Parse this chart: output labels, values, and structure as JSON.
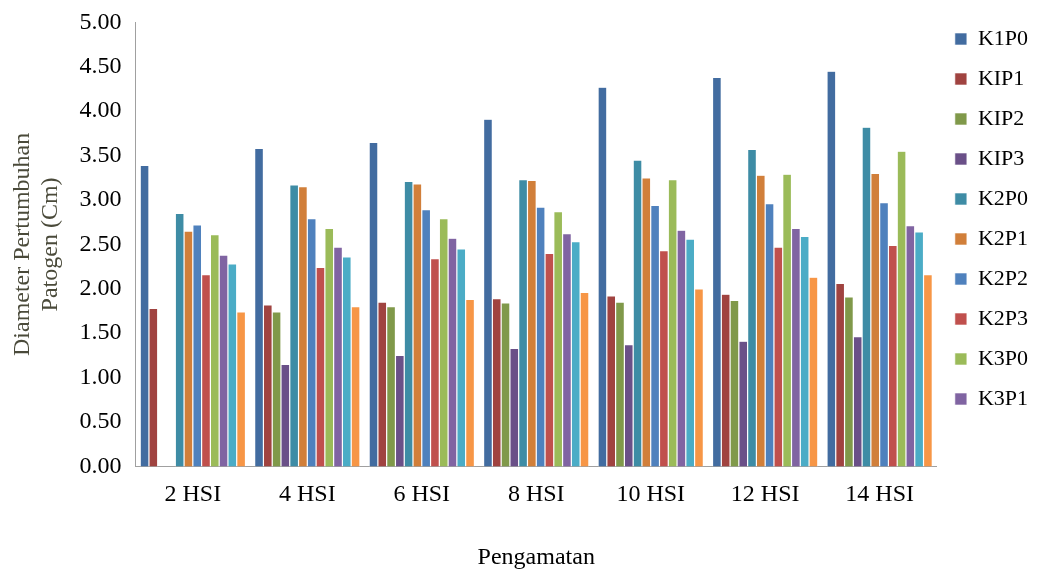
{
  "chart_data": {
    "type": "bar",
    "xlabel": "Pengamatan",
    "ylabel": "Diameter Pertumbuhan\nPatogen (Cm)",
    "categories": [
      "2 HSI",
      "4 HSI",
      "6 HSI",
      "8 HSI",
      "10 HSI",
      "12 HSI",
      "14 HSI"
    ],
    "ylim": [
      0,
      5
    ],
    "yticks": [
      {
        "value": 0,
        "label": "0.00"
      },
      {
        "value": 0.5,
        "label": "0.50"
      },
      {
        "value": 1,
        "label": "1.00"
      },
      {
        "value": 1.5,
        "label": "1.50"
      },
      {
        "value": 2,
        "label": "2.00"
      },
      {
        "value": 2.5,
        "label": "2.50"
      },
      {
        "value": 3,
        "label": "3.00"
      },
      {
        "value": 3.5,
        "label": "3.50"
      },
      {
        "value": 4,
        "label": "4.00"
      },
      {
        "value": 4.5,
        "label": "4.50"
      },
      {
        "value": 5,
        "label": "5.00"
      }
    ],
    "grid": false,
    "legend": "right",
    "series": [
      {
        "name": "K1P0",
        "color": "#426ca0",
        "values": [
          3.39,
          3.58,
          3.65,
          3.91,
          4.27,
          4.38,
          4.45
        ]
      },
      {
        "name": "KIP1",
        "color": "#a04340",
        "values": [
          1.78,
          1.82,
          1.85,
          1.89,
          1.92,
          1.94,
          2.06
        ]
      },
      {
        "name": "KIP2",
        "color": "#80994a",
        "values": [
          null,
          1.74,
          1.8,
          1.84,
          1.85,
          1.87,
          1.91
        ]
      },
      {
        "name": "KIP3",
        "color": "#6a5088",
        "values": [
          null,
          1.15,
          1.25,
          1.33,
          1.37,
          1.41,
          1.46
        ]
      },
      {
        "name": "K2P0",
        "color": "#3e8ca5",
        "values": [
          2.85,
          3.17,
          3.21,
          3.23,
          3.45,
          3.57,
          3.82
        ]
      },
      {
        "name": "K2P1",
        "color": "#d17f3a",
        "values": [
          2.65,
          3.15,
          3.18,
          3.22,
          3.25,
          3.28,
          3.3
        ]
      },
      {
        "name": "K2P2",
        "color": "#4f81bd",
        "values": [
          2.72,
          2.79,
          2.89,
          2.92,
          2.94,
          2.96,
          2.97
        ]
      },
      {
        "name": "K2P3",
        "color": "#c0504d",
        "values": [
          2.16,
          2.24,
          2.34,
          2.4,
          2.43,
          2.47,
          2.49
        ]
      },
      {
        "name": "K3P0",
        "color": "#9bbb59",
        "values": [
          2.61,
          2.68,
          2.79,
          2.87,
          3.23,
          3.29,
          3.55
        ]
      },
      {
        "name": "K3P1",
        "color": "#8064a2",
        "values": [
          2.38,
          2.47,
          2.57,
          2.62,
          2.66,
          2.68,
          2.71
        ]
      },
      {
        "color": "#4bacc6",
        "values": [
          2.28,
          2.36,
          2.45,
          2.53,
          2.56,
          2.59,
          2.64
        ]
      },
      {
        "color": "#f79646",
        "values": [
          1.74,
          1.8,
          1.88,
          1.96,
          2.0,
          2.13,
          2.16
        ]
      }
    ]
  }
}
